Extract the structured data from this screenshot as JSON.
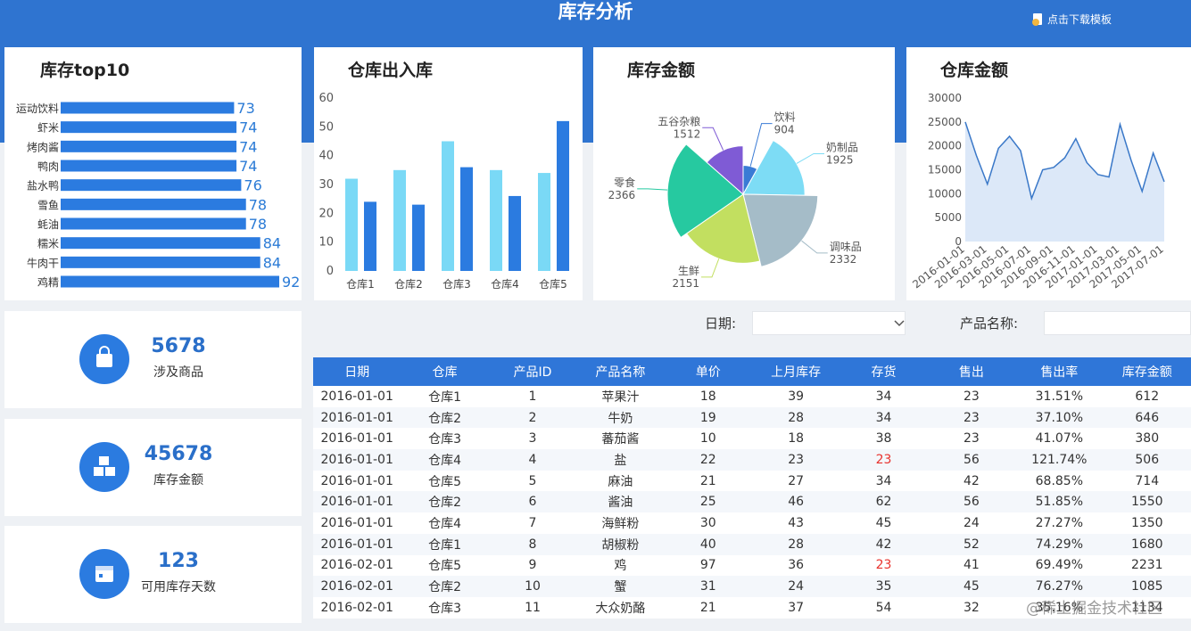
{
  "header": {
    "title": "库存分析",
    "download_button": "点击下载模板"
  },
  "chart_data": [
    {
      "type": "hbar",
      "title": "库存top10",
      "categories": [
        "运动饮料",
        "虾米",
        "烤肉酱",
        "鸭肉",
        "盐水鸭",
        "雪鱼",
        "蚝油",
        "糯米",
        "牛肉干",
        "鸡精"
      ],
      "values": [
        73,
        74,
        74,
        74,
        76,
        78,
        78,
        84,
        84,
        92
      ],
      "color": "#2b7be0",
      "value_label_color": "#2b7bd6"
    },
    {
      "type": "bar",
      "title": "仓库出入库",
      "categories": [
        "仓库1",
        "仓库2",
        "仓库3",
        "仓库4",
        "仓库5"
      ],
      "series": [
        {
          "color": "#7ad9f6",
          "values": [
            32,
            35,
            45,
            35,
            34
          ]
        },
        {
          "color": "#2b7be0",
          "values": [
            24,
            23,
            36,
            26,
            52
          ]
        }
      ],
      "ylim": [
        0,
        60
      ],
      "yticks": [
        0,
        10,
        20,
        30,
        40,
        50,
        60
      ],
      "grid": false
    },
    {
      "type": "pie",
      "title": "库存金额",
      "rose": true,
      "categories": [
        "饮料",
        "奶制品",
        "调味品",
        "生鲜",
        "零食",
        "五谷杂粮"
      ],
      "values": [
        904,
        1925,
        2332,
        2151,
        2366,
        1512
      ],
      "colors": [
        "#3a7bd5",
        "#7ddcf5",
        "#a5bcc8",
        "#c2df60",
        "#26c9a0",
        "#7f5bd5"
      ]
    },
    {
      "type": "line",
      "title": "仓库金额",
      "x": [
        "2016-01-01",
        null,
        "2016-03-01",
        null,
        "2016-05-01",
        null,
        "2016-07-01",
        null,
        "2016-09-01",
        null,
        "2016-11-01",
        null,
        "2017-01-01",
        null,
        "2017-03-01",
        null,
        "2017-05-01",
        null,
        "2017-07-01"
      ],
      "values": [
        25000,
        18000,
        12000,
        19500,
        22000,
        19000,
        9000,
        15000,
        15500,
        17500,
        21500,
        16500,
        14000,
        13500,
        24500,
        17000,
        10500,
        18500,
        12500
      ],
      "color": "#3a78c8",
      "area": true,
      "area_color": "#dce8f8",
      "ylim": [
        0,
        30000
      ],
      "yticks": [
        0,
        5000,
        10000,
        15000,
        20000,
        25000,
        30000
      ]
    }
  ],
  "kpis": [
    {
      "value": "5678",
      "label": "涉及商品"
    },
    {
      "value": "45678",
      "label": "库存金额"
    },
    {
      "value": "123",
      "label": "可用库存天数"
    }
  ],
  "filters": {
    "date_label": "日期:",
    "product_label": "产品名称:"
  },
  "table": {
    "columns": [
      "日期",
      "仓库",
      "产品ID",
      "产品名称",
      "单价",
      "上月库存",
      "存货",
      "售出",
      "售出率",
      "库存金额"
    ],
    "rows": [
      [
        "2016-01-01",
        "仓库1",
        1,
        "苹果汁",
        18,
        39,
        34,
        23,
        "31.51%",
        612
      ],
      [
        "2016-01-01",
        "仓库2",
        2,
        "牛奶",
        19,
        28,
        34,
        23,
        "37.10%",
        646
      ],
      [
        "2016-01-01",
        "仓库3",
        3,
        "蕃茄酱",
        10,
        18,
        38,
        23,
        "41.07%",
        380
      ],
      [
        "2016-01-01",
        "仓库4",
        4,
        "盐",
        22,
        23,
        23,
        56,
        "121.74%",
        506
      ],
      [
        "2016-01-01",
        "仓库5",
        5,
        "麻油",
        21,
        27,
        34,
        42,
        "68.85%",
        714
      ],
      [
        "2016-01-01",
        "仓库2",
        6,
        "酱油",
        25,
        46,
        62,
        56,
        "51.85%",
        1550
      ],
      [
        "2016-01-01",
        "仓库4",
        7,
        "海鲜粉",
        30,
        43,
        45,
        24,
        "27.27%",
        1350
      ],
      [
        "2016-01-01",
        "仓库1",
        8,
        "胡椒粉",
        40,
        28,
        42,
        52,
        "74.29%",
        1680
      ],
      [
        "2016-02-01",
        "仓库5",
        9,
        "鸡",
        97,
        36,
        23,
        41,
        "69.49%",
        2231
      ],
      [
        "2016-02-01",
        "仓库2",
        10,
        "蟹",
        31,
        24,
        35,
        45,
        "76.27%",
        1085
      ],
      [
        "2016-02-01",
        "仓库3",
        11,
        "大众奶酪",
        21,
        37,
        54,
        32,
        "35.16%",
        1134
      ]
    ],
    "highlighted_cells": [
      {
        "row": 3,
        "col": 6
      },
      {
        "row": 8,
        "col": 6
      }
    ],
    "highlight_color": "#e8322d"
  },
  "watermark": "@稀土掘金技术社区"
}
